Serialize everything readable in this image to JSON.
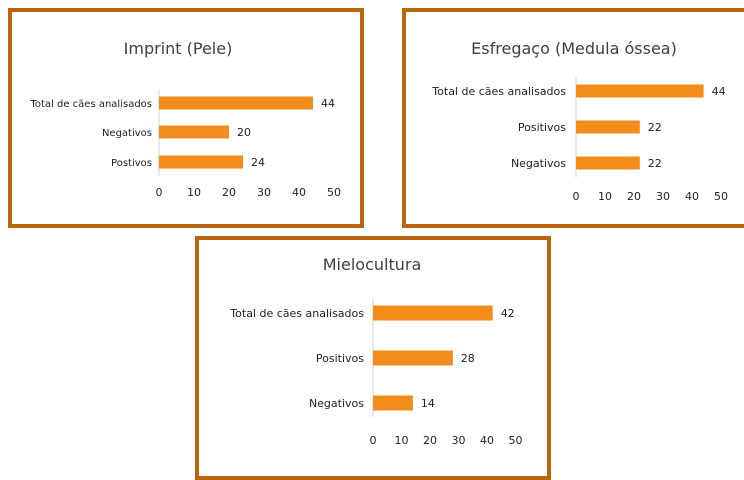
{
  "colors": {
    "bar": "#f28c1b",
    "border": "#b8650c",
    "axis": "#d0d0d0"
  },
  "chart_data": [
    {
      "type": "bar",
      "orientation": "horizontal",
      "title": "Imprint (Pele)",
      "categories": [
        "Total de cães analisados",
        "Negativos",
        "Postivos"
      ],
      "values": [
        44,
        20,
        24
      ],
      "xlim": [
        0,
        50
      ],
      "xticks": [
        "0",
        "10",
        "20",
        "30",
        "40",
        "50"
      ],
      "grid": false,
      "data_labels": true
    },
    {
      "type": "bar",
      "orientation": "horizontal",
      "title": "Esfregaço (Medula óssea)",
      "categories": [
        "Total de cães analisados",
        "Positivos",
        "Negativos"
      ],
      "values": [
        44,
        22,
        22
      ],
      "xlim": [
        0,
        50
      ],
      "xticks": [
        "0",
        "10",
        "20",
        "30",
        "40",
        "50"
      ],
      "grid": false,
      "data_labels": true
    },
    {
      "type": "bar",
      "orientation": "horizontal",
      "title": "Mielocultura",
      "categories": [
        "Total de cães analisados",
        "Positivos",
        "Negativos"
      ],
      "values": [
        42,
        28,
        14
      ],
      "xlim": [
        0,
        50
      ],
      "xticks": [
        "0",
        "10",
        "20",
        "30",
        "40",
        "50"
      ],
      "grid": false,
      "data_labels": true
    }
  ]
}
